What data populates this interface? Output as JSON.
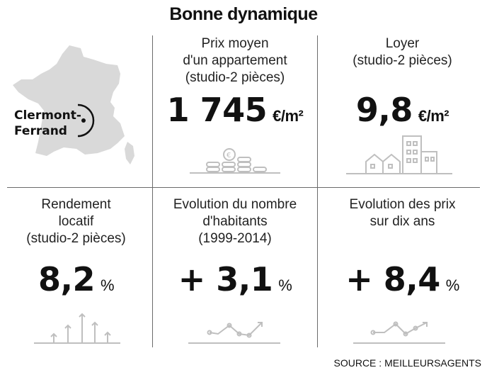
{
  "title": "Bonne dynamique",
  "map": {
    "city_line1": "Clermont-",
    "city_line2": "Ferrand",
    "icon": "france-map-icon"
  },
  "cells": {
    "prix": {
      "label_lines": [
        "Prix moyen",
        "d'un appartement",
        "(studio-2 pièces)"
      ],
      "value": "1 745",
      "unit": "€/m²",
      "icon": "coins-icon"
    },
    "loyer": {
      "label_lines": [
        "Loyer",
        "(studio-2 pièces)"
      ],
      "value": "9,8",
      "unit": "€/m²",
      "icon": "buildings-icon"
    },
    "rendement": {
      "label_lines": [
        "Rendement",
        "locatif",
        "(studio-2 pièces)"
      ],
      "value": "8,2",
      "unit": "%",
      "icon": "up-arrows-icon"
    },
    "habitants": {
      "label_lines": [
        "Evolution du nombre",
        "d'habitants",
        "(1999-2014)"
      ],
      "value": "+ 3,1",
      "unit": "%",
      "icon": "trend-line-icon"
    },
    "prix_evol": {
      "label_lines": [
        "Evolution des prix",
        "sur dix ans"
      ],
      "value": "+ 8,4",
      "unit": "%",
      "icon": "trend-line-icon"
    }
  },
  "source": "SOURCE : MEILLEURSAGENTS",
  "colors": {
    "text": "#111111",
    "map": "#d9d9d9",
    "icon": "#bfbfbf",
    "divider": "#6b6b6b"
  }
}
